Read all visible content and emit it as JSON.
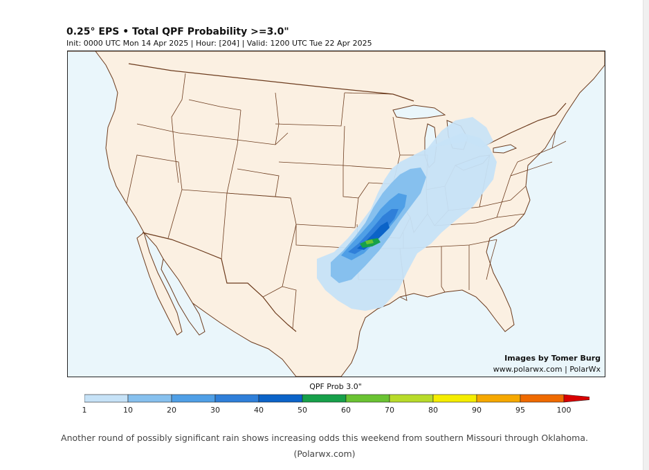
{
  "title": "0.25° EPS • Total QPF Probability >=3.0\"",
  "subtitle": "Init: 0000 UTC Mon 14 Apr 2025 | Hour: [204] | Valid: 1200 UTC Tue 22 Apr 2025",
  "credit": {
    "line1": "Images by Tomer Burg",
    "line2": "www.polarwx.com | PolarWx"
  },
  "colorbar": {
    "title": "QPF Prob 3.0\"",
    "ticks": [
      "1",
      "10",
      "20",
      "30",
      "40",
      "50",
      "60",
      "70",
      "80",
      "90",
      "95",
      "100"
    ],
    "colors": [
      "#c6e2f7",
      "#86c0ee",
      "#4f9fe6",
      "#2f7fd9",
      "#0b63c8",
      "#16a04a",
      "#6ac332",
      "#b8db2a",
      "#f5ed00",
      "#f6a800",
      "#ef6a00",
      "#d80000"
    ]
  },
  "caption": {
    "line1": "Another round of possibly significant rain shows increasing odds this weekend from southern Missouri through Oklahoma.",
    "line2": "(Polarwx.com)"
  }
}
